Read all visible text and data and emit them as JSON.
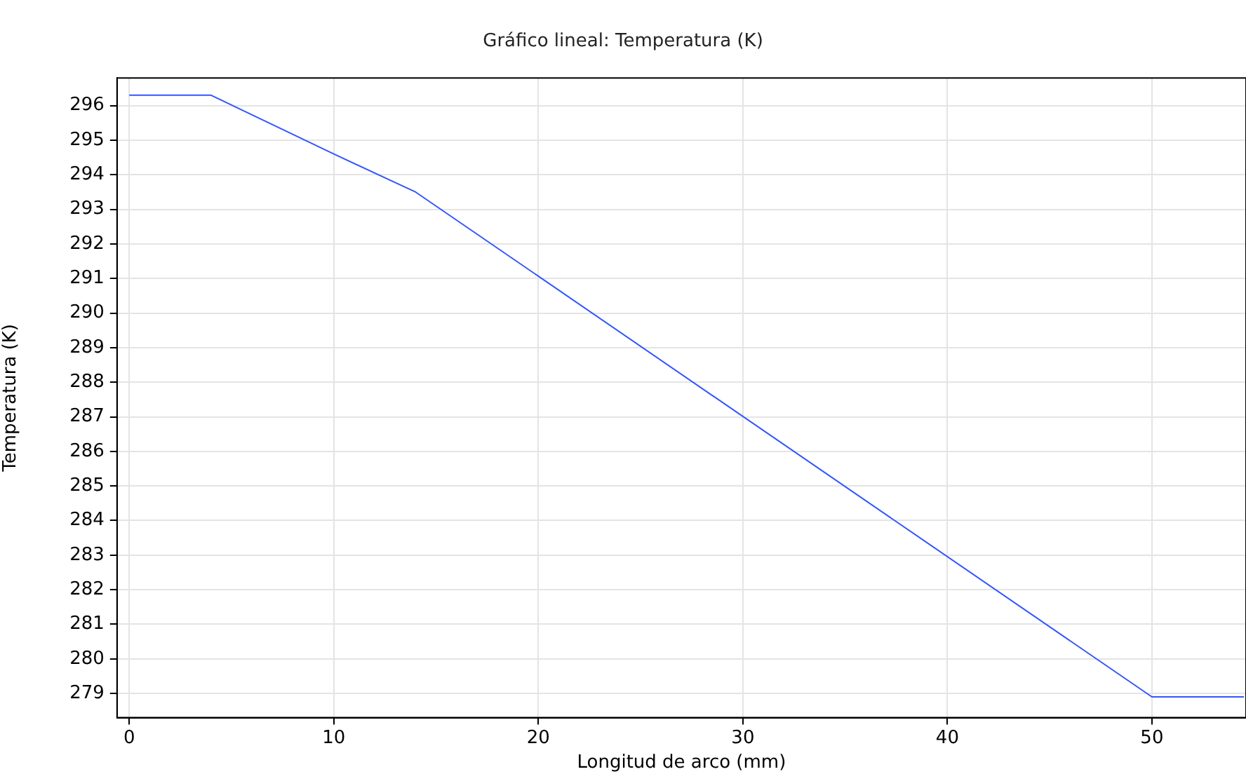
{
  "chart_data": {
    "type": "line",
    "title": "Gráfico lineal: Temperatura (K)",
    "xlabel": "Longitud de arco (mm)",
    "ylabel": "Temperatura (K)",
    "series": [
      {
        "color": "#3355ff",
        "x": [
          0,
          4,
          10,
          14,
          50,
          54.5
        ],
        "values": [
          296.3,
          296.3,
          294.6,
          293.5,
          278.9,
          278.9
        ]
      }
    ],
    "xlim": [
      -0.6,
      54.6
    ],
    "xticks": [
      0,
      10,
      20,
      30,
      40,
      50
    ],
    "ylim": [
      278.3,
      296.8
    ],
    "yticks": [
      279,
      280,
      281,
      282,
      283,
      284,
      285,
      286,
      287,
      288,
      289,
      290,
      291,
      292,
      293,
      294,
      295,
      296
    ],
    "grid": true,
    "legend": false,
    "marker": "none",
    "line_style": "solid"
  }
}
